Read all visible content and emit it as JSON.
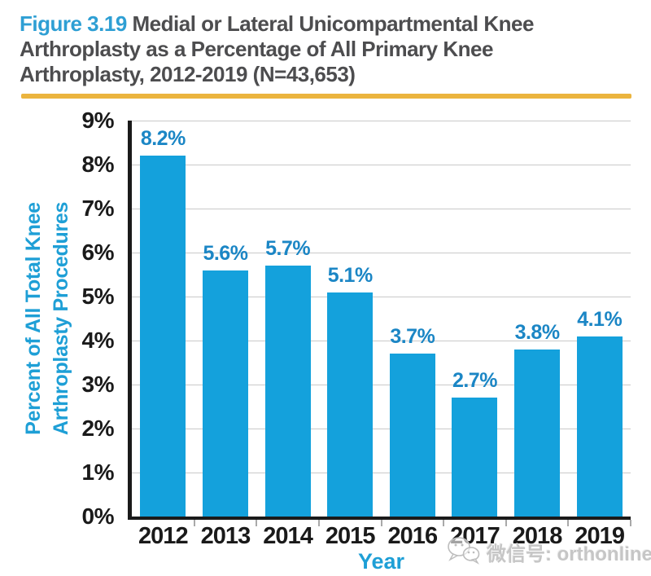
{
  "title": {
    "figure_label": "Figure 3.19",
    "line1": "Medial or Lateral Unicompartmental Knee",
    "line2": "Arthroplasty as a Percentage of All Primary Knee",
    "line3": "Arthroplasty, 2012-2019 (N=43,653)"
  },
  "chart_data": {
    "type": "bar",
    "title": "Figure 3.19 Medial or Lateral Unicompartmental Knee Arthroplasty as a Percentage of All Primary Knee Arthroplasty, 2012-2019 (N=43,653)",
    "categories": [
      "2012",
      "2013",
      "2014",
      "2015",
      "2016",
      "2017",
      "2018",
      "2019"
    ],
    "values": [
      8.2,
      5.6,
      5.7,
      5.1,
      3.7,
      2.7,
      3.8,
      4.1
    ],
    "value_labels": [
      "8.2%",
      "5.6%",
      "5.7%",
      "5.1%",
      "3.7%",
      "2.7%",
      "3.8%",
      "4.1%"
    ],
    "xlabel": "Year",
    "ylabel": "Percent of All Total Knee Arthroplasty Procedures",
    "ylabel_lines": [
      "Percent of All Total Knee",
      "Arthroplasty Procedures"
    ],
    "y_ticks": [
      "0%",
      "1%",
      "2%",
      "3%",
      "4%",
      "5%",
      "6%",
      "7%",
      "8%",
      "9%"
    ],
    "ylim": [
      0,
      9
    ],
    "grid": "horizontal",
    "legend": "none",
    "bar_color": "#14a1dc",
    "value_label_color": "#1b86c5",
    "axis_title_color": "#1e9fd6"
  },
  "watermark": {
    "icon": "wechat-icon",
    "text": "微信号: orthonline"
  },
  "colors": {
    "figure_label_blue": "#2e9fd4",
    "title_gray": "#4d4d4f",
    "rule_yellow": "#ebb43e",
    "gridline_gray": "#c9c9c9",
    "axis_black": "#1a1a1a"
  }
}
